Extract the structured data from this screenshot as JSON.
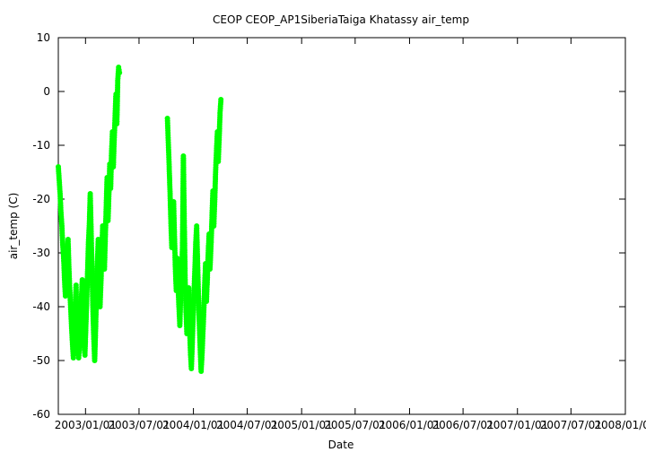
{
  "chart_data": {
    "type": "scatter",
    "title": "CEOP CEOP_AP1SiberiaTaiga Khatassy  air_temp",
    "xlabel": "Date",
    "ylabel": "air_temp (C)",
    "xlim": [
      "2002/10/01",
      "2008/01/01"
    ],
    "ylim": [
      -60,
      10
    ],
    "yticks": [
      10,
      0,
      -10,
      -20,
      -30,
      -40,
      -50,
      -60
    ],
    "xtick_labels": [
      "2003/01/01",
      "2003/07/01",
      "2004/01/01",
      "2004/07/01",
      "2005/01/01",
      "2005/07/01",
      "2006/01/01",
      "2006/07/01",
      "2007/01/01",
      "2007/07/01",
      "2008/01/01"
    ],
    "grid": false,
    "series": [
      {
        "color": "#00ff00",
        "points": [
          [
            "2002/10/01",
            -14.0
          ],
          [
            "2002/10/04",
            -16.5
          ],
          [
            "2002/10/07",
            -19.0
          ],
          [
            "2002/10/10",
            -22.5
          ],
          [
            "2002/10/13",
            -25.0
          ],
          [
            "2002/10/16",
            -28.5
          ],
          [
            "2002/10/19",
            -31.0
          ],
          [
            "2002/10/22",
            -35.0
          ],
          [
            "2002/10/25",
            -38.0
          ],
          [
            "2002/10/28",
            -34.0
          ],
          [
            "2002/10/31",
            -30.0
          ],
          [
            "2002/11/03",
            -27.5
          ],
          [
            "2002/11/06",
            -33.0
          ],
          [
            "2002/11/09",
            -37.0
          ],
          [
            "2002/11/12",
            -40.5
          ],
          [
            "2002/11/15",
            -44.0
          ],
          [
            "2002/11/18",
            -47.0
          ],
          [
            "2002/11/21",
            -49.5
          ],
          [
            "2002/11/24",
            -45.0
          ],
          [
            "2002/11/27",
            -40.0
          ],
          [
            "2002/11/30",
            -36.0
          ],
          [
            "2002/12/03",
            -43.0
          ],
          [
            "2002/12/06",
            -48.0
          ],
          [
            "2002/12/09",
            -49.5
          ],
          [
            "2002/12/12",
            -46.0
          ],
          [
            "2002/12/15",
            -42.0
          ],
          [
            "2002/12/18",
            -38.5
          ],
          [
            "2002/12/21",
            -35.0
          ],
          [
            "2002/12/24",
            -41.0
          ],
          [
            "2002/12/27",
            -47.5
          ],
          [
            "2002/12/30",
            -49.0
          ],
          [
            "2003/01/02",
            -44.0
          ],
          [
            "2003/01/05",
            -39.0
          ],
          [
            "2003/01/08",
            -33.5
          ],
          [
            "2003/01/11",
            -28.0
          ],
          [
            "2003/01/14",
            -24.5
          ],
          [
            "2003/01/17",
            -19.0
          ],
          [
            "2003/01/20",
            -26.0
          ],
          [
            "2003/01/23",
            -33.0
          ],
          [
            "2003/01/26",
            -40.5
          ],
          [
            "2003/01/29",
            -46.0
          ],
          [
            "2003/02/01",
            -50.0
          ],
          [
            "2003/02/04",
            -44.5
          ],
          [
            "2003/02/07",
            -38.0
          ],
          [
            "2003/02/10",
            -32.0
          ],
          [
            "2003/02/13",
            -27.5
          ],
          [
            "2003/02/16",
            -34.0
          ],
          [
            "2003/02/19",
            -40.0
          ],
          [
            "2003/02/22",
            -36.0
          ],
          [
            "2003/02/25",
            -30.5
          ],
          [
            "2003/02/28",
            -25.0
          ],
          [
            "2003/03/03",
            -29.0
          ],
          [
            "2003/03/06",
            -33.0
          ],
          [
            "2003/03/09",
            -27.0
          ],
          [
            "2003/03/12",
            -21.5
          ],
          [
            "2003/03/15",
            -16.0
          ],
          [
            "2003/03/18",
            -24.0
          ],
          [
            "2003/03/21",
            -19.5
          ],
          [
            "2003/03/24",
            -13.5
          ],
          [
            "2003/03/27",
            -18.0
          ],
          [
            "2003/03/30",
            -11.5
          ],
          [
            "2003/04/02",
            -7.5
          ],
          [
            "2003/04/05",
            -14.0
          ],
          [
            "2003/04/08",
            -9.0
          ],
          [
            "2003/04/11",
            -4.5
          ],
          [
            "2003/04/14",
            -0.5
          ],
          [
            "2003/04/17",
            -6.0
          ],
          [
            "2003/04/20",
            2.0
          ],
          [
            "2003/04/23",
            4.5
          ],
          [
            "2003/04/26",
            3.5
          ],
          [
            "2003/10/05",
            -5.0
          ],
          [
            "2003/10/08",
            -9.5
          ],
          [
            "2003/10/11",
            -14.0
          ],
          [
            "2003/10/14",
            -19.0
          ],
          [
            "2003/10/17",
            -24.5
          ],
          [
            "2003/10/20",
            -29.0
          ],
          [
            "2003/10/23",
            -25.0
          ],
          [
            "2003/10/26",
            -20.5
          ],
          [
            "2003/10/29",
            -27.0
          ],
          [
            "2003/11/01",
            -33.0
          ],
          [
            "2003/11/04",
            -37.0
          ],
          [
            "2003/11/07",
            -31.0
          ],
          [
            "2003/11/10",
            -36.0
          ],
          [
            "2003/11/13",
            -40.0
          ],
          [
            "2003/11/16",
            -43.5
          ],
          [
            "2003/11/19",
            -38.0
          ],
          [
            "2003/11/22",
            -34.0
          ],
          [
            "2003/11/25",
            -29.0
          ],
          [
            "2003/11/28",
            -12.0
          ],
          [
            "2003/12/01",
            -24.0
          ],
          [
            "2003/12/04",
            -35.0
          ],
          [
            "2003/12/07",
            -41.0
          ],
          [
            "2003/12/10",
            -45.0
          ],
          [
            "2003/12/13",
            -40.0
          ],
          [
            "2003/12/16",
            -36.5
          ],
          [
            "2003/12/19",
            -44.0
          ],
          [
            "2003/12/22",
            -48.5
          ],
          [
            "2003/12/25",
            -51.5
          ],
          [
            "2003/12/28",
            -47.0
          ],
          [
            "2003/12/31",
            -42.0
          ],
          [
            "2004/01/03",
            -37.5
          ],
          [
            "2004/01/06",
            -33.0
          ],
          [
            "2004/01/09",
            -28.0
          ],
          [
            "2004/01/12",
            -25.0
          ],
          [
            "2004/01/15",
            -31.5
          ],
          [
            "2004/01/18",
            -38.0
          ],
          [
            "2004/01/21",
            -43.5
          ],
          [
            "2004/01/24",
            -48.0
          ],
          [
            "2004/01/27",
            -52.0
          ],
          [
            "2004/01/30",
            -49.0
          ],
          [
            "2004/02/02",
            -45.0
          ],
          [
            "2004/02/05",
            -41.0
          ],
          [
            "2004/02/08",
            -36.0
          ],
          [
            "2004/02/11",
            -32.0
          ],
          [
            "2004/02/14",
            -39.0
          ],
          [
            "2004/02/17",
            -35.0
          ],
          [
            "2004/02/20",
            -30.0
          ],
          [
            "2004/02/23",
            -26.5
          ],
          [
            "2004/02/26",
            -33.0
          ],
          [
            "2004/03/01",
            -28.0
          ],
          [
            "2004/03/04",
            -23.0
          ],
          [
            "2004/03/07",
            -18.5
          ],
          [
            "2004/03/10",
            -25.0
          ],
          [
            "2004/03/13",
            -20.5
          ],
          [
            "2004/03/16",
            -15.0
          ],
          [
            "2004/03/19",
            -11.0
          ],
          [
            "2004/03/22",
            -7.5
          ],
          [
            "2004/03/25",
            -13.0
          ],
          [
            "2004/03/28",
            -9.0
          ],
          [
            "2004/03/31",
            -4.0
          ],
          [
            "2004/04/03",
            -1.5
          ]
        ]
      }
    ]
  }
}
